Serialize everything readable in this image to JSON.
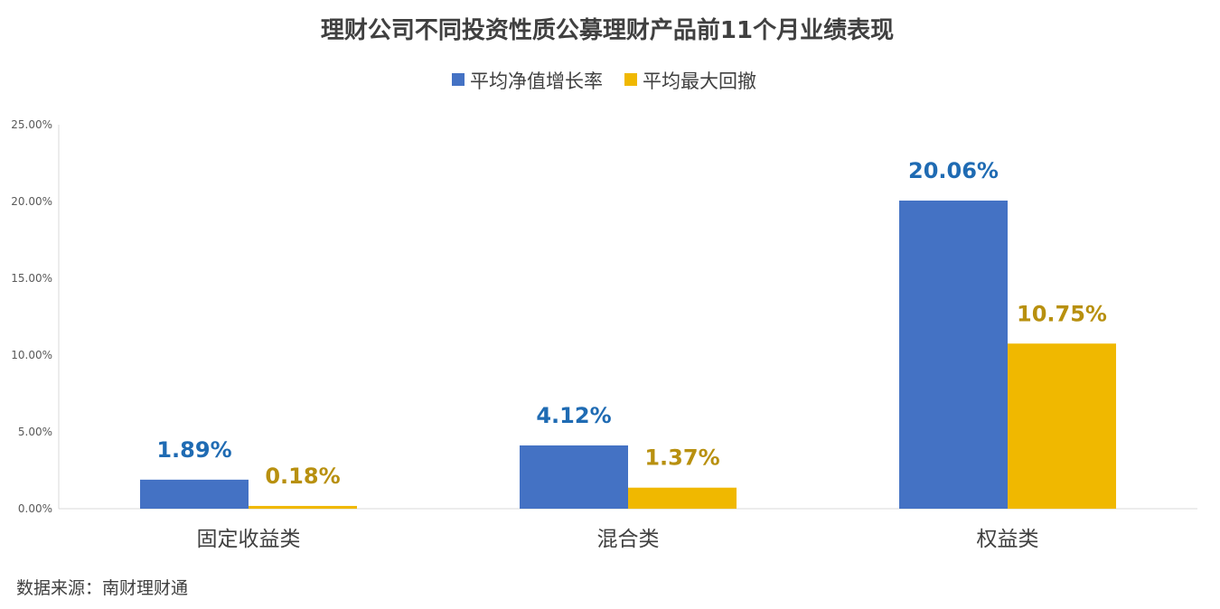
{
  "chart_data": {
    "type": "bar",
    "title": "理财公司不同投资性质公募理财产品前11个月业绩表现",
    "categories": [
      "固定收益类",
      "混合类",
      "权益类"
    ],
    "series": [
      {
        "name": "平均净值增长率",
        "values": [
          1.89,
          4.12,
          20.06
        ],
        "labels": [
          "1.89%",
          "4.12%",
          "20.06%"
        ],
        "color": "#4472C4",
        "label_color": "#1F6BB3"
      },
      {
        "name": "平均最大回撤",
        "values": [
          0.18,
          1.37,
          10.75
        ],
        "labels": [
          "0.18%",
          "1.37%",
          "10.75%"
        ],
        "color": "#F0B800",
        "label_color": "#B8900F"
      }
    ],
    "ylim": [
      0,
      25
    ],
    "yticks": [
      "0.00%",
      "5.00%",
      "10.00%",
      "15.00%",
      "20.00%",
      "25.00%"
    ],
    "xlabel": "",
    "ylabel": "",
    "grid": false,
    "legend": "top-center"
  },
  "source": "数据来源：南财理财通"
}
